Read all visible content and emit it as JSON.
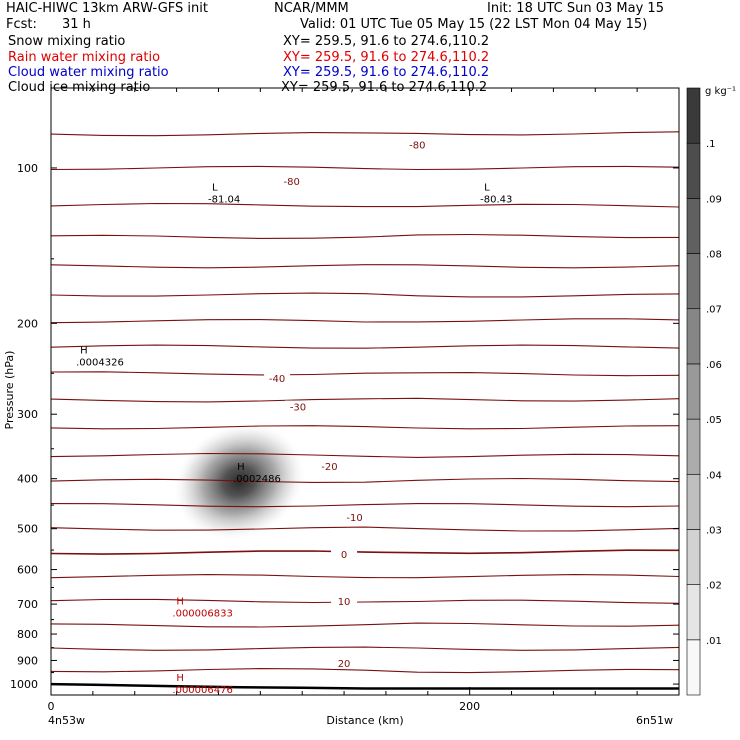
{
  "header": {
    "title": "HAIC-HIWC 13km ARW-GFS init",
    "org": "NCAR/MMM",
    "init": "Init: 18 UTC Sun 03 May 15",
    "fcst_label": "Fcst:",
    "fcst_value": "31 h",
    "valid": "Valid: 01 UTC Tue 05 May 15 (22 LST Mon 04 May 15)",
    "fields": [
      {
        "name": "Snow mixing ratio",
        "xy": "XY= 259.5, 91.6 to 274.6,110.2",
        "color": "#000000"
      },
      {
        "name": "Rain water mixing ratio",
        "xy": "XY= 259.5, 91.6 to 274.6,110.2",
        "color": "#e00000"
      },
      {
        "name": "Cloud water mixing ratio",
        "xy": "XY= 259.5, 91.6 to 274.6,110.2",
        "color": "#0000c8"
      },
      {
        "name": "Cloud ice mixing ratio",
        "xy": "XY= 259.5, 91.6 to 274.6,110.2",
        "color": "#000000"
      }
    ]
  },
  "chart_data": {
    "type": "heatmap",
    "xlabel": "Distance (km)",
    "ylabel": "Pressure (hPa)",
    "xlim": [
      0,
      300
    ],
    "ylim_hpa": [
      1050,
      70
    ],
    "x_ticks": [
      0,
      200
    ],
    "y_ticks": [
      100,
      200,
      300,
      400,
      500,
      600,
      700,
      800,
      900,
      1000
    ],
    "x_endpoint_labels": [
      "4n53w",
      "6n51w"
    ],
    "colorbar": {
      "units": "g kg⁻¹",
      "ticks": [
        ".01",
        ".02",
        ".03",
        ".04",
        ".05",
        ".06",
        ".07",
        ".08",
        ".09",
        ".1"
      ]
    },
    "snow_max": {
      "x_km": 90,
      "p_hpa": 405,
      "value_g_kg": 0.1
    },
    "extrema_markers": [
      {
        "type": "L",
        "value": "-81.04",
        "x_km": 75,
        "p_hpa": 112,
        "color": "#000000"
      },
      {
        "type": "L",
        "value": "-80.43",
        "x_km": 205,
        "p_hpa": 112,
        "color": "#000000"
      },
      {
        "type": "H",
        "value": ".0004326",
        "x_km": 12,
        "p_hpa": 232,
        "color": "#000000"
      },
      {
        "type": "H",
        "value": ".0002486",
        "x_km": 87,
        "p_hpa": 390,
        "color": "#000000"
      },
      {
        "type": "H",
        "value": ".000006833",
        "x_km": 58,
        "p_hpa": 710,
        "color": "#c00000"
      },
      {
        "type": "H",
        "value": ".000006476",
        "x_km": 58,
        "p_hpa": 1000,
        "color": "#c00000"
      }
    ],
    "temperature_contour_labels": [
      {
        "label": "-80",
        "x_km": 175,
        "p_hpa": 90
      },
      {
        "label": "-80",
        "x_km": 115,
        "p_hpa": 106
      },
      {
        "label": "-40",
        "x_km": 108,
        "p_hpa": 255
      },
      {
        "label": "-30",
        "x_km": 118,
        "p_hpa": 290
      },
      {
        "label": "-20",
        "x_km": 133,
        "p_hpa": 378
      },
      {
        "label": "-10",
        "x_km": 145,
        "p_hpa": 475
      },
      {
        "label": "0",
        "x_km": 140,
        "p_hpa": 560
      },
      {
        "label": "10",
        "x_km": 140,
        "p_hpa": 690
      },
      {
        "label": "20",
        "x_km": 140,
        "p_hpa": 910
      }
    ],
    "temperature_contour_levels_hpa": [
      86,
      100,
      118,
      136,
      155,
      176,
      198,
      222,
      250,
      282,
      318,
      360,
      404,
      450,
      500,
      556,
      618,
      690,
      770,
      854,
      940
    ],
    "terrain_hpa": [
      [
        0,
        1000
      ],
      [
        20,
        1003
      ],
      [
        60,
        1010
      ],
      [
        90,
        1014
      ],
      [
        120,
        1017
      ],
      [
        150,
        1020
      ],
      [
        300,
        1020
      ]
    ]
  }
}
